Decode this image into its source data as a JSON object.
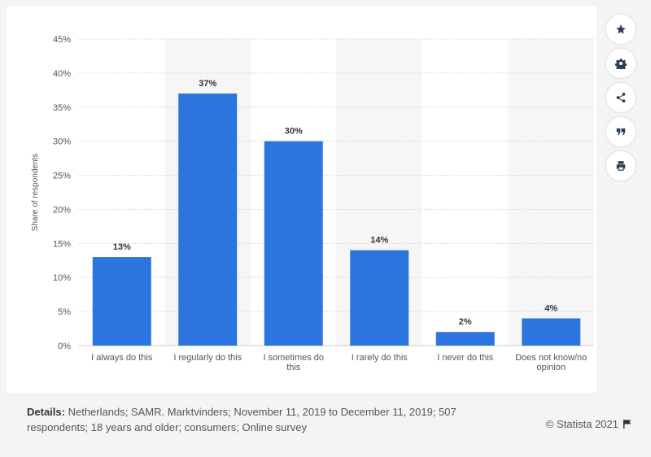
{
  "chart_data": {
    "type": "bar",
    "categories": [
      "I always do this",
      "I regularly do this",
      "I sometimes do this",
      "I rarely do this",
      "I never do this",
      "Does not know/no opinion"
    ],
    "category_lines": [
      [
        "I always do this"
      ],
      [
        "I regularly do this"
      ],
      [
        "I sometimes do",
        "this"
      ],
      [
        "I rarely do this"
      ],
      [
        "I never do this"
      ],
      [
        "Does not know/no",
        "opinion"
      ]
    ],
    "values": [
      13,
      37,
      30,
      14,
      2,
      4
    ],
    "value_labels": [
      "13%",
      "37%",
      "30%",
      "14%",
      "2%",
      "4%"
    ],
    "ylabel": "Share of respondents",
    "ylim": [
      0,
      45
    ],
    "yticks": [
      0,
      5,
      10,
      15,
      20,
      25,
      30,
      35,
      40,
      45
    ],
    "ytick_labels": [
      "0%",
      "5%",
      "10%",
      "15%",
      "20%",
      "25%",
      "30%",
      "35%",
      "40%",
      "45%"
    ],
    "bar_color": "#2d75de",
    "alt_band_color": "#f6f6f6",
    "grid": true
  },
  "footer": {
    "details_label": "Details:",
    "details_text": "Netherlands; SAMR. Marktvinders; November 11, 2019 to December 11, 2019; 507 respondents; 18 years and older; consumers; Online survey",
    "copyright": "© Statista 2021"
  },
  "toolbar": {
    "icons": [
      "star-icon",
      "gear-icon",
      "share-icon",
      "quote-icon",
      "print-icon"
    ]
  }
}
